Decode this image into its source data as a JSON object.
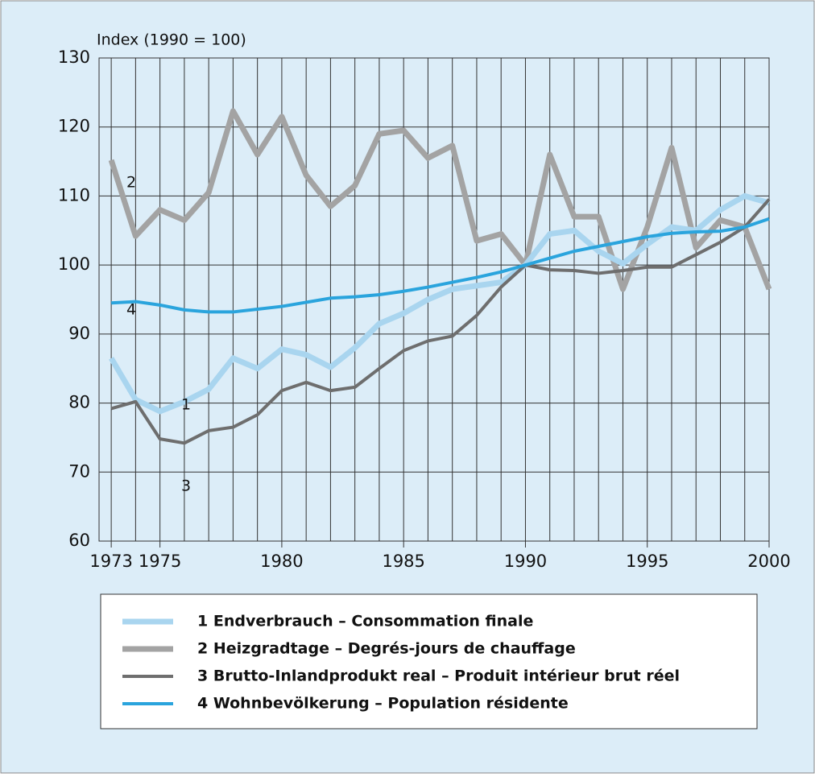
{
  "chart_data": {
    "type": "line",
    "ylabel": "Index (1990 = 100)",
    "x": [
      1973,
      1974,
      1975,
      1976,
      1977,
      1978,
      1979,
      1980,
      1981,
      1982,
      1983,
      1984,
      1985,
      1986,
      1987,
      1988,
      1989,
      1990,
      1991,
      1992,
      1993,
      1994,
      1995,
      1996,
      1997,
      1998,
      1999,
      2000
    ],
    "series": [
      {
        "name": "1 Endverbrauch – Consommation finale",
        "color": "#a9d5ef",
        "values": [
          86.5,
          80.5,
          78.8,
          80.2,
          82,
          86.5,
          85,
          87.8,
          87,
          85.2,
          88,
          91.5,
          93,
          95,
          96.5,
          97,
          97.5,
          100,
          104.5,
          105,
          102,
          100.2,
          103,
          105.5,
          105,
          108,
          110,
          109
        ]
      },
      {
        "name": "2 Heizgradtage – Degrés-jours de chauffage",
        "color": "#a3a3a3",
        "values": [
          115.2,
          104.2,
          108,
          106.5,
          110.5,
          122.3,
          116,
          121.5,
          113,
          108.5,
          111.5,
          119,
          119.5,
          115.5,
          117.3,
          103.5,
          104.5,
          100,
          116,
          107,
          107,
          96.5,
          105.5,
          117,
          102.5,
          106.5,
          105.5,
          96.5
        ]
      },
      {
        "name": "3 Brutto-Inlandprodukt real – Produit intérieur brut réel",
        "color": "#6e6e6e",
        "values": [
          79.2,
          80.2,
          74.8,
          74.2,
          76,
          76.5,
          78.3,
          81.8,
          83,
          81.8,
          82.3,
          85,
          87.6,
          89,
          89.7,
          92.7,
          96.8,
          100,
          99.3,
          99.2,
          98.8,
          99.2,
          99.7,
          99.7,
          101.5,
          103.3,
          105.5,
          109.5
        ]
      },
      {
        "name": "4 Wohnbevölkerung – Population résidente",
        "color": "#2aa4dd",
        "values": [
          94.5,
          94.7,
          94.2,
          93.5,
          93.2,
          93.2,
          93.6,
          94,
          94.6,
          95.2,
          95.4,
          95.7,
          96.2,
          96.8,
          97.5,
          98.2,
          99,
          100,
          101,
          102,
          102.7,
          103.4,
          104.1,
          104.6,
          104.8,
          104.9,
          105.5,
          106.7
        ]
      }
    ],
    "annotations": [
      "1",
      "2",
      "3",
      "4"
    ],
    "xlim": [
      1972.5,
      2000
    ],
    "xticks": [
      1973,
      1975,
      1980,
      1985,
      1990,
      1995,
      2000
    ],
    "ylim": [
      60,
      130
    ],
    "yticks": [
      60,
      70,
      80,
      90,
      100,
      110,
      120,
      130
    ],
    "grid": true
  }
}
